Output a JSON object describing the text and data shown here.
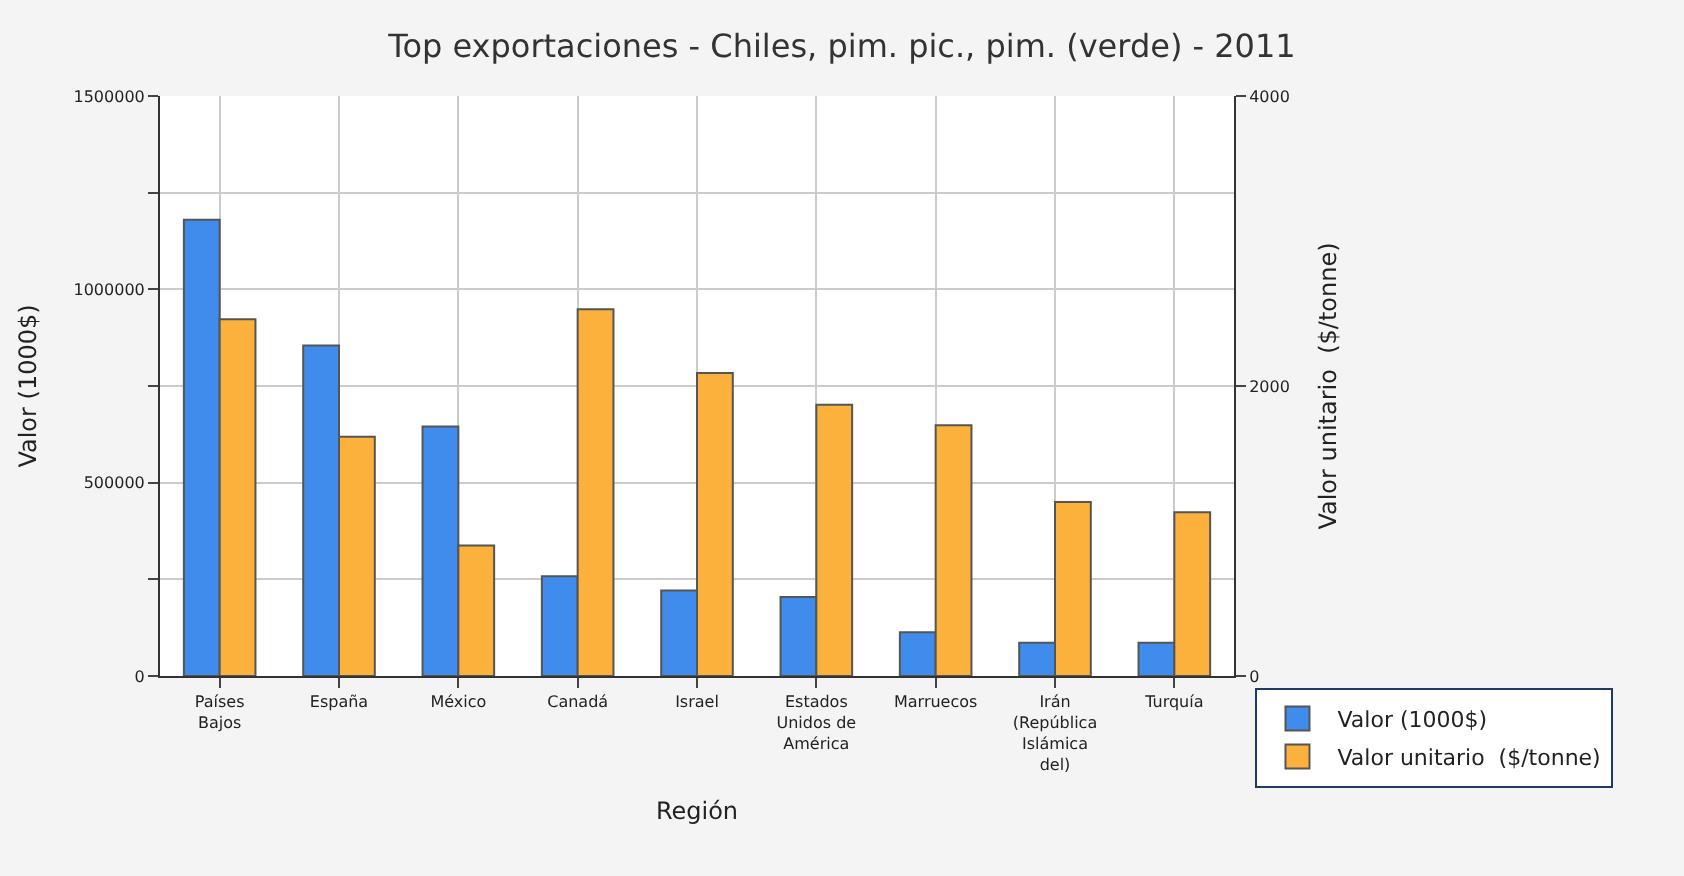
{
  "chart_data": {
    "type": "bar",
    "title": "Top exportaciones - Chiles, pim. pic., pim. (verde) - 2011",
    "xlabel": "Región",
    "ylabel": "Valor (1000$)",
    "y2label": "Valor unitario  ($/tonne)",
    "categories": [
      "Países\nBajos",
      "España",
      "México",
      "Canadá",
      "Israel",
      "Estados\nUnidos de\nAmérica",
      "Marruecos",
      "Irán\n(República\nIslámica\ndel)",
      "Turquía"
    ],
    "series": [
      {
        "name": "Valor (1000$)",
        "color": "#3f8ced",
        "values": [
          1180000,
          855000,
          645000,
          258000,
          221000,
          204000,
          113000,
          86000,
          86000
        ]
      },
      {
        "name": "Valor unitario  ($/tonne)",
        "color": "#fbb13c",
        "axis": "y2",
        "values": [
          2460,
          1650,
          900,
          2530,
          2090,
          1870,
          1730,
          1200,
          1130
        ]
      }
    ],
    "ylim": [
      0,
      1500000
    ],
    "yticks": [
      0,
      {
        "value": 250000,
        "label": null
      },
      500000,
      {
        "value": 750000,
        "label": null
      },
      1000000,
      {
        "value": 1250000,
        "label": null
      },
      1500000
    ],
    "y2lim": [
      0,
      4000
    ],
    "y2ticks": [
      0,
      2000,
      4000
    ],
    "grid": true,
    "legend": "bottom right"
  }
}
